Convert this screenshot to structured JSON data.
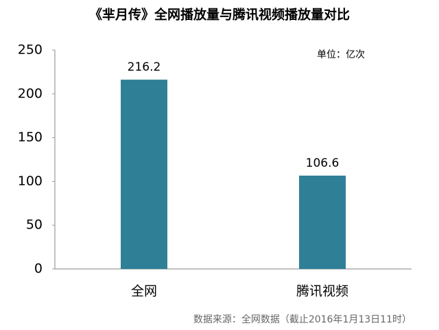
{
  "chart_data": {
    "type": "bar",
    "title": "《芈月传》全网播放量与腾讯视频播放量对比",
    "unit_note": "单位：亿次",
    "source": "数据来源：全网数据（截止2016年1月13日11时）",
    "categories": [
      "全网",
      "腾讯视频"
    ],
    "values": [
      216.2,
      106.6
    ],
    "color": "#2f8096",
    "ylim": [
      0,
      250
    ],
    "yticks": [
      0,
      50,
      100,
      150,
      200,
      250
    ],
    "grid": false
  }
}
